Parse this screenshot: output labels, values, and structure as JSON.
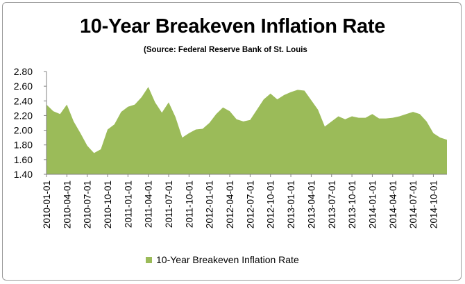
{
  "chart_data": {
    "type": "area",
    "title": "10-Year Breakeven Inflation Rate",
    "subtitle": "(Source: Federal Reserve Bank of St. Louis",
    "xlabel": "",
    "ylabel": "",
    "ylim": [
      1.4,
      2.8
    ],
    "yticks": [
      1.4,
      1.6,
      1.8,
      2.0,
      2.2,
      2.4,
      2.6,
      2.8
    ],
    "ytick_labels": [
      "1.40",
      "1.60",
      "1.80",
      "2.00",
      "2.20",
      "2.40",
      "2.60",
      "2.80"
    ],
    "grid": false,
    "legend_position": "bottom",
    "color": "#9bbb59",
    "x_tick_labels": [
      "2010-01-01",
      "2010-04-01",
      "2010-07-01",
      "2010-10-01",
      "2011-01-01",
      "2011-04-01",
      "2011-07-01",
      "2011-10-01",
      "2012-01-01",
      "2012-04-01",
      "2012-07-01",
      "2012-10-01",
      "2013-01-01",
      "2013-04-01",
      "2013-07-01",
      "2013-10-01",
      "2014-01-01",
      "2014-04-01",
      "2014-07-01",
      "2014-10-01"
    ],
    "series": [
      {
        "name": "10-Year Breakeven Inflation Rate",
        "x": [
          "2010-01",
          "2010-02",
          "2010-03",
          "2010-04",
          "2010-05",
          "2010-06",
          "2010-07",
          "2010-08",
          "2010-09",
          "2010-10",
          "2010-11",
          "2010-12",
          "2011-01",
          "2011-02",
          "2011-03",
          "2011-04",
          "2011-05",
          "2011-06",
          "2011-07",
          "2011-08",
          "2011-09",
          "2011-10",
          "2011-11",
          "2011-12",
          "2012-01",
          "2012-02",
          "2012-03",
          "2012-04",
          "2012-05",
          "2012-06",
          "2012-07",
          "2012-08",
          "2012-09",
          "2012-10",
          "2012-11",
          "2012-12",
          "2013-01",
          "2013-02",
          "2013-03",
          "2013-04",
          "2013-05",
          "2013-06",
          "2013-07",
          "2013-08",
          "2013-09",
          "2013-10",
          "2013-11",
          "2013-12",
          "2014-01",
          "2014-02",
          "2014-03",
          "2014-04",
          "2014-05",
          "2014-06",
          "2014-07",
          "2014-08",
          "2014-09",
          "2014-10",
          "2014-11",
          "2014-12"
        ],
        "values": [
          2.35,
          2.26,
          2.22,
          2.35,
          2.12,
          1.96,
          1.79,
          1.69,
          1.74,
          2.01,
          2.08,
          2.25,
          2.32,
          2.35,
          2.45,
          2.59,
          2.38,
          2.24,
          2.38,
          2.18,
          1.9,
          1.96,
          2.01,
          2.02,
          2.1,
          2.22,
          2.31,
          2.26,
          2.15,
          2.12,
          2.14,
          2.28,
          2.42,
          2.5,
          2.42,
          2.48,
          2.52,
          2.55,
          2.54,
          2.41,
          2.28,
          2.05,
          2.12,
          2.19,
          2.15,
          2.19,
          2.17,
          2.17,
          2.22,
          2.16,
          2.16,
          2.17,
          2.19,
          2.22,
          2.25,
          2.22,
          2.12,
          1.96,
          1.9,
          1.87
        ]
      }
    ]
  }
}
